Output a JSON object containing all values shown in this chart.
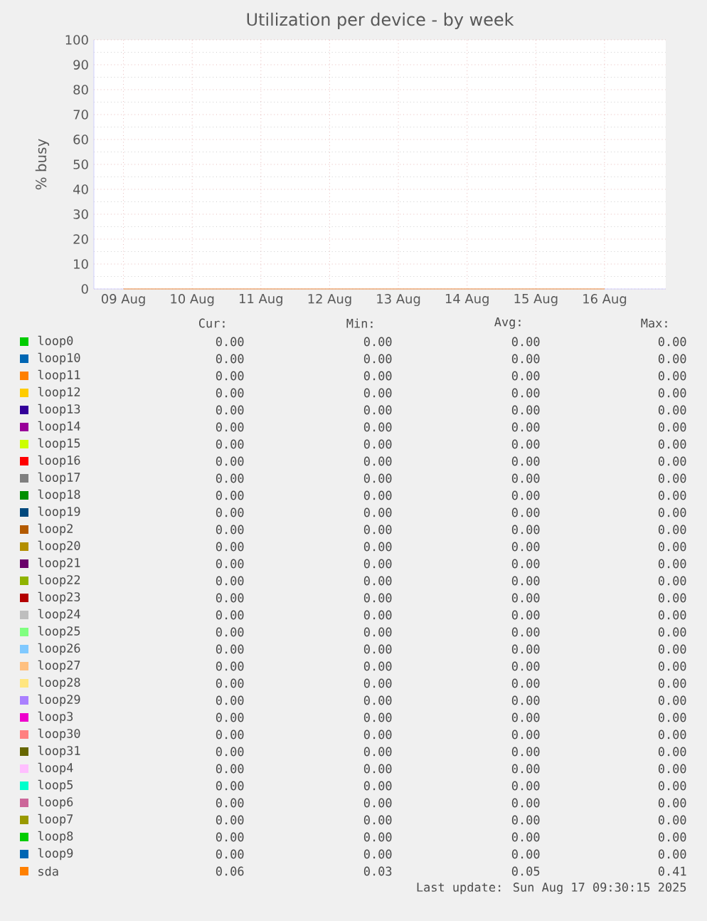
{
  "chart_data": {
    "type": "line",
    "title": "Utilization per device - by week",
    "ylabel": "% busy",
    "categories": [
      "09 Aug",
      "10 Aug",
      "11 Aug",
      "12 Aug",
      "13 Aug",
      "14 Aug",
      "15 Aug",
      "16 Aug"
    ],
    "ylim": [
      0,
      100
    ],
    "yticks": [
      0,
      10,
      20,
      30,
      40,
      50,
      60,
      70,
      80,
      90,
      100
    ],
    "grid": true,
    "legend": "bottom",
    "series": [
      {
        "name": "loop0",
        "color": "#00cc00",
        "values": [
          null,
          null,
          null,
          null,
          null,
          null,
          null,
          null
        ]
      },
      {
        "name": "loop10",
        "color": "#0066b3",
        "values": [
          null,
          null,
          null,
          null,
          null,
          null,
          null,
          null
        ]
      },
      {
        "name": "loop11",
        "color": "#ff8000",
        "values": [
          null,
          null,
          null,
          null,
          null,
          null,
          null,
          null
        ]
      },
      {
        "name": "loop12",
        "color": "#ffcc00",
        "values": [
          null,
          null,
          null,
          null,
          null,
          null,
          null,
          null
        ]
      },
      {
        "name": "loop13",
        "color": "#330099",
        "values": [
          null,
          null,
          null,
          null,
          null,
          null,
          null,
          null
        ]
      },
      {
        "name": "loop14",
        "color": "#990099",
        "values": [
          null,
          null,
          null,
          null,
          null,
          null,
          null,
          null
        ]
      },
      {
        "name": "loop15",
        "color": "#ccff00",
        "values": [
          null,
          null,
          null,
          null,
          null,
          null,
          null,
          null
        ]
      },
      {
        "name": "loop16",
        "color": "#ff0000",
        "values": [
          null,
          null,
          null,
          null,
          null,
          null,
          null,
          null
        ]
      },
      {
        "name": "loop17",
        "color": "#808080",
        "values": [
          null,
          null,
          null,
          null,
          null,
          null,
          null,
          null
        ]
      },
      {
        "name": "loop18",
        "color": "#008f00",
        "values": [
          null,
          null,
          null,
          null,
          null,
          null,
          null,
          null
        ]
      },
      {
        "name": "loop19",
        "color": "#00487d",
        "values": [
          null,
          null,
          null,
          null,
          null,
          null,
          null,
          null
        ]
      },
      {
        "name": "loop2",
        "color": "#b35a00",
        "values": [
          null,
          null,
          null,
          null,
          null,
          null,
          null,
          null
        ]
      },
      {
        "name": "loop20",
        "color": "#b38f00",
        "values": [
          null,
          null,
          null,
          null,
          null,
          null,
          null,
          null
        ]
      },
      {
        "name": "loop21",
        "color": "#6b006b",
        "values": [
          null,
          null,
          null,
          null,
          null,
          null,
          null,
          null
        ]
      },
      {
        "name": "loop22",
        "color": "#8fb300",
        "values": [
          null,
          null,
          null,
          null,
          null,
          null,
          null,
          null
        ]
      },
      {
        "name": "loop23",
        "color": "#b30000",
        "values": [
          null,
          null,
          null,
          null,
          null,
          null,
          null,
          null
        ]
      },
      {
        "name": "loop24",
        "color": "#bebebe",
        "values": [
          null,
          null,
          null,
          null,
          null,
          null,
          null,
          null
        ]
      },
      {
        "name": "loop25",
        "color": "#80ff80",
        "values": [
          null,
          null,
          null,
          null,
          null,
          null,
          null,
          null
        ]
      },
      {
        "name": "loop26",
        "color": "#80c9ff",
        "values": [
          null,
          null,
          null,
          null,
          null,
          null,
          null,
          null
        ]
      },
      {
        "name": "loop27",
        "color": "#ffc080",
        "values": [
          null,
          null,
          null,
          null,
          null,
          null,
          null,
          null
        ]
      },
      {
        "name": "loop28",
        "color": "#ffe680",
        "values": [
          null,
          null,
          null,
          null,
          null,
          null,
          null,
          null
        ]
      },
      {
        "name": "loop29",
        "color": "#aa80ff",
        "values": [
          null,
          null,
          null,
          null,
          null,
          null,
          null,
          null
        ]
      },
      {
        "name": "loop3",
        "color": "#ee00cc",
        "values": [
          null,
          null,
          null,
          null,
          null,
          null,
          null,
          null
        ]
      },
      {
        "name": "loop30",
        "color": "#ff8080",
        "values": [
          null,
          null,
          null,
          null,
          null,
          null,
          null,
          null
        ]
      },
      {
        "name": "loop31",
        "color": "#666600",
        "values": [
          null,
          null,
          null,
          null,
          null,
          null,
          null,
          null
        ]
      },
      {
        "name": "loop4",
        "color": "#ffbfff",
        "values": [
          null,
          null,
          null,
          null,
          null,
          null,
          null,
          null
        ]
      },
      {
        "name": "loop5",
        "color": "#00ffcc",
        "values": [
          null,
          null,
          null,
          null,
          null,
          null,
          null,
          null
        ]
      },
      {
        "name": "loop6",
        "color": "#cc6699",
        "values": [
          null,
          null,
          null,
          null,
          null,
          null,
          null,
          null
        ]
      },
      {
        "name": "loop7",
        "color": "#999900",
        "values": [
          null,
          null,
          null,
          null,
          null,
          null,
          null,
          null
        ]
      },
      {
        "name": "loop8",
        "color": "#00cc00",
        "values": [
          null,
          null,
          null,
          null,
          null,
          null,
          null,
          null
        ]
      },
      {
        "name": "loop9",
        "color": "#0066b3",
        "values": [
          null,
          null,
          null,
          null,
          null,
          null,
          null,
          null
        ]
      },
      {
        "name": "sda",
        "color": "#ff8000",
        "values": [
          0,
          0,
          0,
          0,
          0,
          0,
          0,
          0
        ]
      }
    ],
    "annotations": [
      "Cur:",
      "Min:",
      "Avg:",
      "Max:",
      "0.00",
      "0.00",
      "0.00",
      "0.00",
      "0.00",
      "0.00",
      "0.00",
      "0.00",
      "0.00",
      "0.00",
      "0.00",
      "0.00",
      "0.00",
      "0.00",
      "0.00",
      "0.00",
      "0.00",
      "0.00",
      "0.00",
      "0.00",
      "0.00",
      "0.00",
      "0.00",
      "0.00",
      "0.00",
      "0.00",
      "0.00",
      "0.00",
      "0.00",
      "0.00",
      "0.00",
      "0.00",
      "0.00",
      "0.00",
      "0.00",
      "0.00",
      "0.00",
      "0.00",
      "0.00",
      "0.00",
      "0.00",
      "0.00",
      "0.00",
      "0.00",
      "0.00",
      "0.00",
      "0.00",
      "0.00",
      "0.00",
      "0.00",
      "0.00",
      "0.00",
      "0.00",
      "0.00",
      "0.00",
      "0.00",
      "0.00",
      "0.00",
      "0.00",
      "0.00",
      "0.00",
      "0.00",
      "0.00",
      "0.00",
      "0.00",
      "0.00",
      "0.00",
      "0.00",
      "0.00",
      "0.00",
      "0.00",
      "0.00",
      "0.00",
      "0.00",
      "0.00",
      "0.00",
      "0.00",
      "0.00",
      "0.00",
      "0.00",
      "0.00",
      "0.00",
      "0.00",
      "0.00",
      "0.00",
      "0.00",
      "0.00",
      "0.00",
      "0.00",
      "0.00",
      "0.00",
      "0.00",
      "0.00",
      "0.00",
      "0.00",
      "0.00",
      "0.00",
      "0.00",
      "0.00",
      "0.00",
      "0.00",
      "0.00",
      "0.00",
      "0.00",
      "0.00",
      "0.00",
      "0.00",
      "0.00",
      "0.00",
      "0.00",
      "0.00",
      "0.00",
      "0.00",
      "0.00",
      "0.00",
      "0.00",
      "0.00",
      "0.00",
      "0.00",
      "0.00",
      "0.00",
      "0.00",
      "0.00",
      "0.00",
      "0.06",
      "0.03",
      "0.05",
      "0.41",
      "Last update: Sun Aug 17 09:30:15 2025"
    ]
  }
}
